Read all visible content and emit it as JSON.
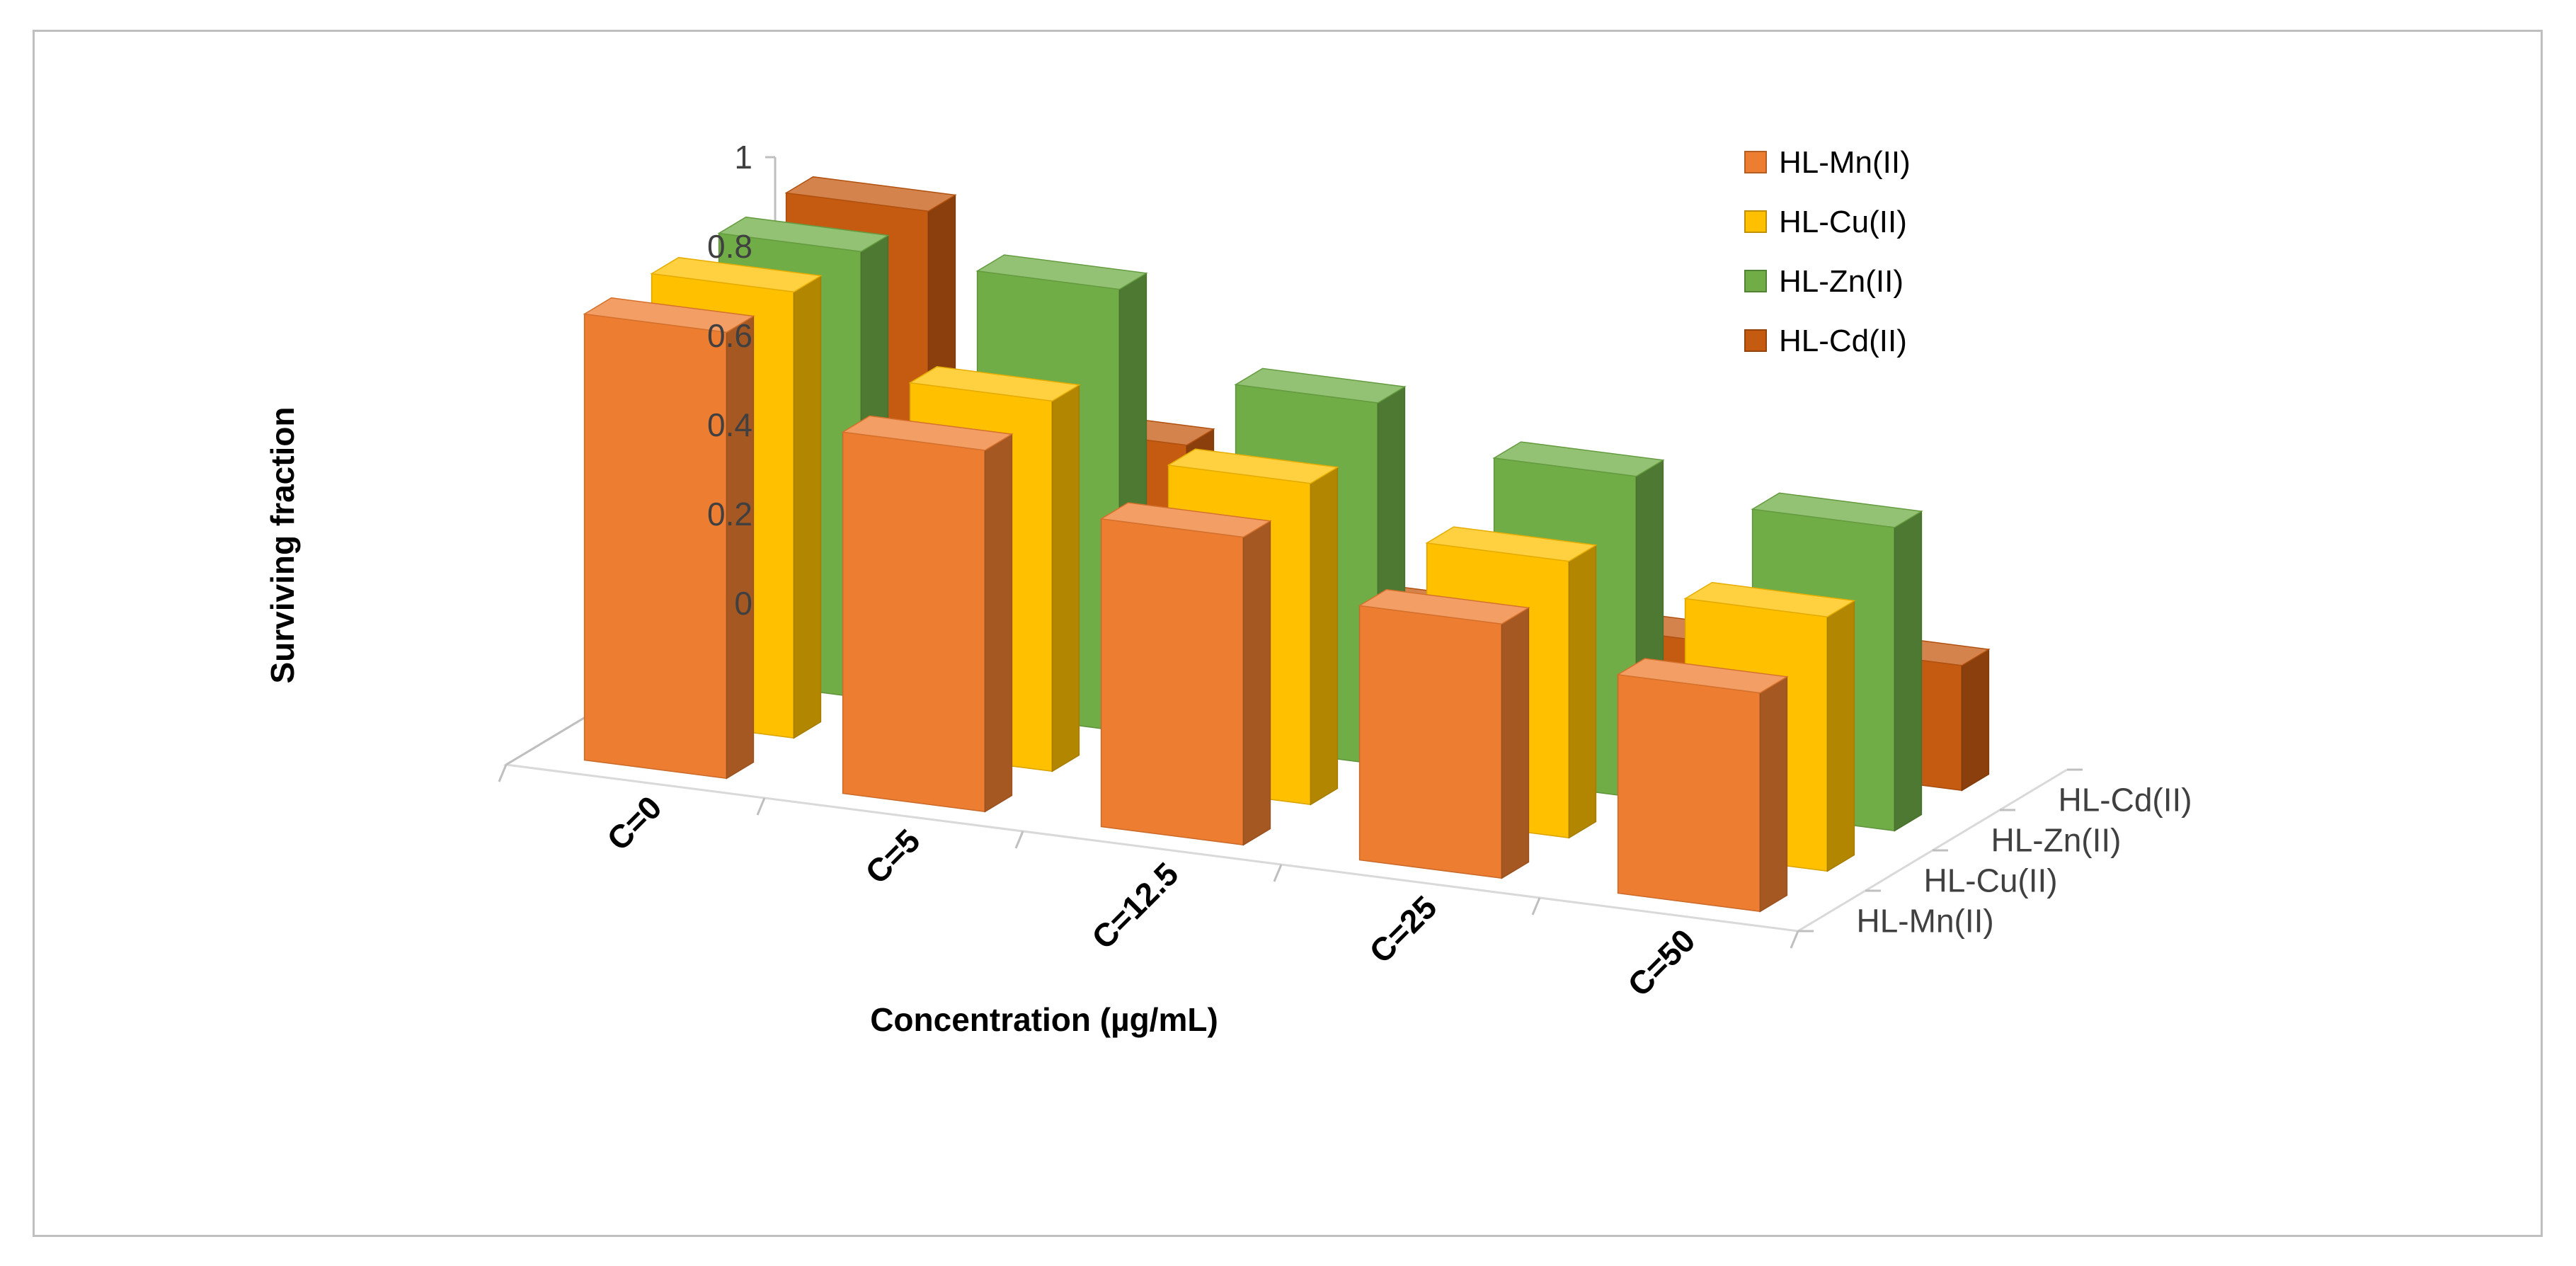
{
  "chart_data": {
    "type": "bar",
    "categories": [
      "C=0",
      "C=5",
      "C=12.5",
      "C=25",
      "C=50"
    ],
    "xlabel": "Concentration (µg/mL)",
    "ylabel": "Surviving fraction",
    "ylim": [
      0,
      1
    ],
    "yticks": [
      "0",
      "0.2",
      "0.4",
      "0.6",
      "0.8",
      "1"
    ],
    "depth_labels": [
      "HL-Mn(II)",
      "HL-Cu(II)",
      "HL-Zn(II)",
      "HL-Cd(II)"
    ],
    "legend_position": "top-right",
    "grid": false,
    "series": [
      {
        "name": "HL-Mn(II)",
        "values": [
          1.0,
          0.81,
          0.69,
          0.57,
          0.49
        ],
        "color": "#ED7D31"
      },
      {
        "name": "HL-Cu(II)",
        "values": [
          1.0,
          0.83,
          0.72,
          0.62,
          0.57
        ],
        "color": "#FFC000"
      },
      {
        "name": "HL-Zn(II)",
        "values": [
          1.0,
          0.99,
          0.81,
          0.72,
          0.68
        ],
        "color": "#70AD47"
      },
      {
        "name": "HL-Cd(II)",
        "values": [
          1.0,
          0.55,
          0.25,
          0.26,
          0.28
        ],
        "color": "#C55A11"
      }
    ]
  }
}
